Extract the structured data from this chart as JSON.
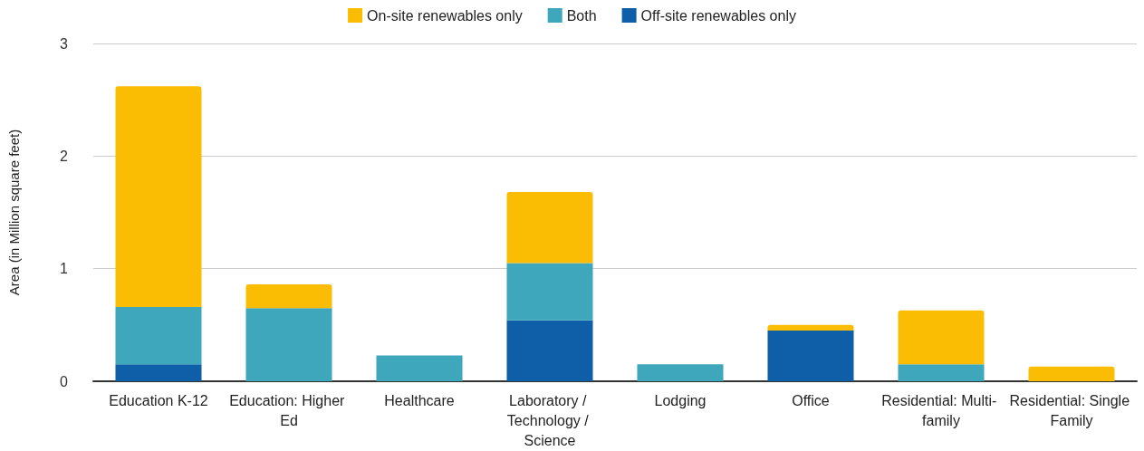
{
  "chart_data": {
    "type": "bar",
    "stacked": true,
    "ylabel": "Area (in Million square feet)",
    "categories": [
      "Education K-12",
      "Education: Higher Ed",
      "Healthcare",
      "Laboratory / Technology / Science",
      "Lodging",
      "Office",
      "Residential: Multi- family",
      "Residential: Single Family"
    ],
    "series": [
      {
        "name": "Off-site renewables only",
        "color": "#0f5fa8",
        "values": [
          0.15,
          null,
          null,
          0.54,
          null,
          0.45,
          null,
          null
        ]
      },
      {
        "name": "Both",
        "color": "#3fa7bb",
        "values": [
          0.51,
          0.65,
          0.23,
          0.51,
          0.15,
          null,
          0.15,
          null
        ]
      },
      {
        "name": "On-site renewables only",
        "color": "#fbbc04",
        "values": [
          1.96,
          0.21,
          null,
          0.63,
          null,
          0.05,
          0.48,
          0.13
        ]
      }
    ],
    "ylim": [
      0,
      3
    ],
    "yticks": [
      0,
      1,
      2,
      3
    ],
    "grid": "y",
    "legend": "top"
  }
}
